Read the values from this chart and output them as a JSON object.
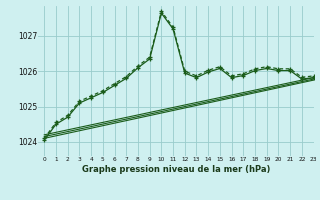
{
  "title": "Graphe pression niveau de la mer (hPa)",
  "background_color": "#cff0f0",
  "grid_color": "#99cccc",
  "line_color_main": "#1a5c1a",
  "xlim": [
    -0.5,
    23
  ],
  "ylim": [
    1023.6,
    1027.85
  ],
  "xticks": [
    0,
    1,
    2,
    3,
    4,
    5,
    6,
    7,
    8,
    9,
    10,
    11,
    12,
    13,
    14,
    15,
    16,
    17,
    18,
    19,
    20,
    21,
    22,
    23
  ],
  "yticks": [
    1024,
    1025,
    1026,
    1027
  ],
  "series1_x": [
    0,
    1,
    2,
    3,
    4,
    5,
    6,
    7,
    8,
    9,
    10,
    11,
    12,
    13,
    14,
    15,
    16,
    17,
    18,
    19,
    20,
    21,
    22,
    23
  ],
  "series1_y": [
    1024.05,
    1024.5,
    1024.7,
    1025.1,
    1025.25,
    1025.4,
    1025.6,
    1025.8,
    1026.1,
    1026.35,
    1027.65,
    1027.2,
    1025.95,
    1025.82,
    1025.98,
    1026.08,
    1025.82,
    1025.88,
    1026.02,
    1026.08,
    1026.02,
    1026.02,
    1025.78,
    1025.82
  ],
  "series2_x": [
    0,
    1,
    2,
    3,
    4,
    5,
    6,
    7,
    8,
    9,
    10,
    11,
    12,
    13,
    14,
    15,
    16,
    17,
    18,
    19,
    20,
    21,
    22,
    23
  ],
  "series2_y": [
    1024.1,
    1024.55,
    1024.75,
    1025.15,
    1025.3,
    1025.45,
    1025.65,
    1025.85,
    1026.15,
    1026.4,
    1027.7,
    1027.25,
    1026.0,
    1025.87,
    1026.03,
    1026.13,
    1025.87,
    1025.93,
    1026.07,
    1026.13,
    1026.07,
    1026.07,
    1025.83,
    1025.87
  ],
  "line1_x": [
    0,
    23
  ],
  "line1_y": [
    1024.1,
    1025.75
  ],
  "line2_x": [
    0,
    23
  ],
  "line2_y": [
    1024.15,
    1025.78
  ],
  "line3_x": [
    0,
    23
  ],
  "line3_y": [
    1024.2,
    1025.82
  ]
}
